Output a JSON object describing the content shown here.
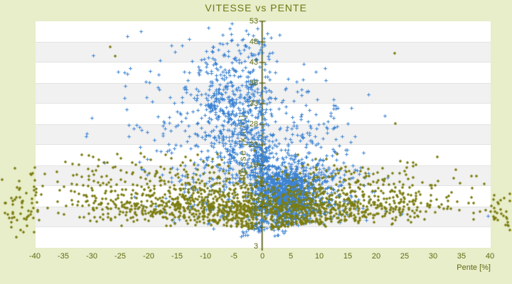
{
  "window": {
    "background_color": "#e8edca"
  },
  "chart_data": {
    "type": "scatter",
    "title": "VITESSE vs PENTE",
    "xlabel": "Pente [%]",
    "ylabel": "Vitesse [km/h]",
    "xlim": [
      -40,
      40
    ],
    "ylim": [
      -2,
      53
    ],
    "x_ticks": [
      -40,
      -35,
      -30,
      -25,
      -20,
      -15,
      -10,
      -5,
      0,
      5,
      10,
      15,
      20,
      25,
      30,
      35,
      40
    ],
    "y_ticks": [
      53,
      48,
      43,
      38,
      33,
      28,
      23,
      18,
      13,
      8,
      3
    ],
    "y_axis_min_label": "3",
    "grid": "alternating-horizontal-bands",
    "legend": "none",
    "colors": {
      "band_light": "#ffffff",
      "band_dark": "#f1f1f1",
      "band_line": "#e3e3e3",
      "axis_line": "#4c5202",
      "label_text": "#5f6a10",
      "title_text": "#6e7914"
    },
    "seed": 1337,
    "series": [
      {
        "name": "vitesse-points-bleus",
        "marker": "plus",
        "color": "#3e84d3",
        "clusters": [
          {
            "n": 550,
            "mx": -4.5,
            "sx": 3.8,
            "my": 30,
            "sy": 8,
            "clip": [
              -20,
              2,
              12,
              53
            ]
          },
          {
            "n": 130,
            "mx": -13,
            "sx": 7,
            "my": 27,
            "sy": 10,
            "clip": [
              -33,
              -2,
              8,
              52
            ]
          },
          {
            "n": 120,
            "mx": -8,
            "sx": 5.5,
            "my": 12,
            "sy": 4.5,
            "clip": [
              -25,
              -1,
              3,
              22
            ]
          },
          {
            "n": 45,
            "mx": -3,
            "sx": 4,
            "my": 46,
            "sy": 3.2,
            "clip": [
              -14,
              6,
              40,
              53
            ]
          },
          {
            "n": 330,
            "mx": -0.3,
            "sx": 1.1,
            "my": 14,
            "sy": 7,
            "clip": [
              -4,
              2,
              2.5,
              45
            ]
          },
          {
            "n": 900,
            "mx": 4.2,
            "sx": 2.6,
            "my": 11,
            "sy": 3.4,
            "clip": [
              0.2,
              14,
              3.5,
              24
            ]
          },
          {
            "n": 300,
            "mx": 8.5,
            "sx": 4.5,
            "my": 13,
            "sy": 4.5,
            "clip": [
              0.5,
              26,
              3,
              26
            ]
          },
          {
            "n": 130,
            "mx": 7,
            "sx": 5,
            "my": 26,
            "sy": 7,
            "clip": [
              0.5,
              23,
              16,
              46
            ]
          },
          {
            "n": 60,
            "mx": 1,
            "sx": 4,
            "my": 3.5,
            "sy": 1.5,
            "clip": [
              -10,
              12,
              0,
              6
            ]
          }
        ],
        "extra_points": [
          [
            39.6,
            5.8
          ],
          [
            24.5,
            6.3
          ],
          [
            -29.8,
            44.8
          ],
          [
            21.5,
            30
          ],
          [
            22,
            15
          ],
          [
            -31,
            25
          ]
        ]
      },
      {
        "name": "vitesse-points-olive",
        "marker": "diamond",
        "color": "#7b7c10",
        "clusters": [
          {
            "n": 420,
            "mx": 0,
            "sx": 19,
            "my": 7.6,
            "sy": 1.8,
            "clip": [
              -44,
              42,
              3,
              14
            ]
          },
          {
            "n": 380,
            "mx": 0,
            "sx": 12,
            "my": 9,
            "sy": 2.6,
            "clip": [
              -40,
              40,
              3,
              18
            ]
          },
          {
            "n": 230,
            "mx": 0,
            "sx": 17,
            "my": 13,
            "sy": 3.2,
            "clip": [
              -42,
              41,
              4,
              24
            ]
          },
          {
            "n": 40,
            "mx": 0,
            "sx": 20,
            "my": 5,
            "sy": 1,
            "clip": [
              -44,
              42,
              2.5,
              8
            ]
          },
          {
            "n": 50,
            "mx": -42.5,
            "sx": 2.5,
            "my": 8,
            "sy": 4.5,
            "clip": [
              -47,
              -39.5,
              0,
              18
            ]
          },
          {
            "n": 30,
            "mx": 41.5,
            "sx": 2,
            "my": 8,
            "sy": 4,
            "clip": [
              39.5,
              46,
              1,
              12
            ]
          }
        ],
        "rays": {
          "slopes": [
            0.18,
            0.22,
            0.27,
            0.33,
            0.4,
            0.48,
            0.58,
            0.7,
            0.85,
            1.05,
            1.3,
            1.6,
            2.0,
            2.5
          ],
          "y0": 2.5,
          "step": 0.85,
          "jitter_x": 0.28,
          "jitter_y": 0.35,
          "left": {
            "x_start": 1.8,
            "x_max": 34,
            "y_max": 21
          },
          "right": {
            "x_start": 1.8,
            "x_max": 27,
            "y_max": 18
          }
        },
        "extra_points": [
          [
            -26.8,
            46.8
          ],
          [
            -25.9,
            44.6
          ],
          [
            23.3,
            45.2
          ],
          [
            23.4,
            28.2
          ],
          [
            30.8,
            20.1
          ],
          [
            -34.6,
            18.8
          ],
          [
            36.8,
            15.4
          ],
          [
            -38.2,
            15.9
          ],
          [
            34,
            17
          ],
          [
            -36,
            14
          ],
          [
            39,
            13.5
          ]
        ]
      }
    ]
  }
}
